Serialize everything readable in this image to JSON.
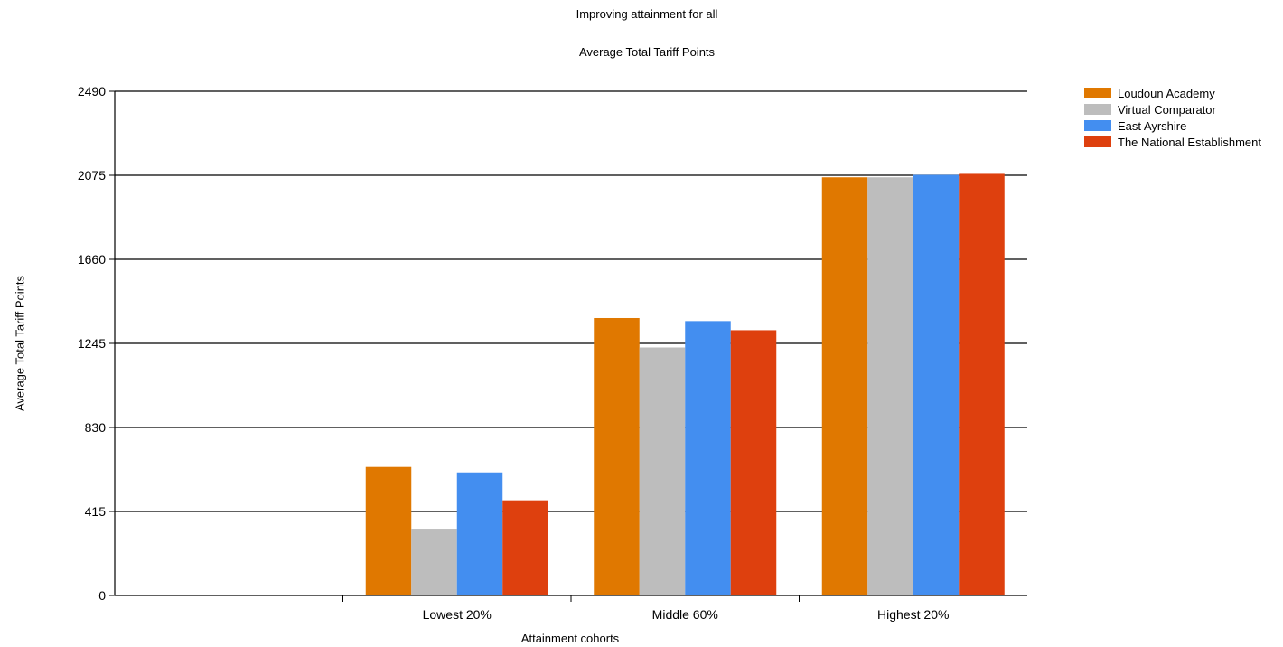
{
  "chart_data": {
    "type": "bar",
    "title": "Improving attainment for all",
    "subtitle": "Average Total Tariff Points",
    "xlabel": "Attainment cohorts",
    "ylabel": "Average Total Tariff Points",
    "categories": [
      "Lowest 20%",
      "Middle 60%",
      "Highest 20%"
    ],
    "ylim": [
      0,
      2490
    ],
    "yticks": [
      0,
      415,
      830,
      1245,
      1660,
      2075,
      2490
    ],
    "grid": true,
    "legend_position": "top-right",
    "series": [
      {
        "name": "Loudoun Academy",
        "color": "#E07800",
        "values": [
          635,
          1370,
          2065
        ]
      },
      {
        "name": "Virtual Comparator",
        "color": "#BDBDBD",
        "values": [
          330,
          1225,
          2065
        ]
      },
      {
        "name": "East Ayrshire",
        "color": "#438EF0",
        "values": [
          608,
          1355,
          2077
        ]
      },
      {
        "name": "The National Establishment",
        "color": "#DE400E",
        "values": [
          470,
          1310,
          2082
        ]
      }
    ]
  }
}
